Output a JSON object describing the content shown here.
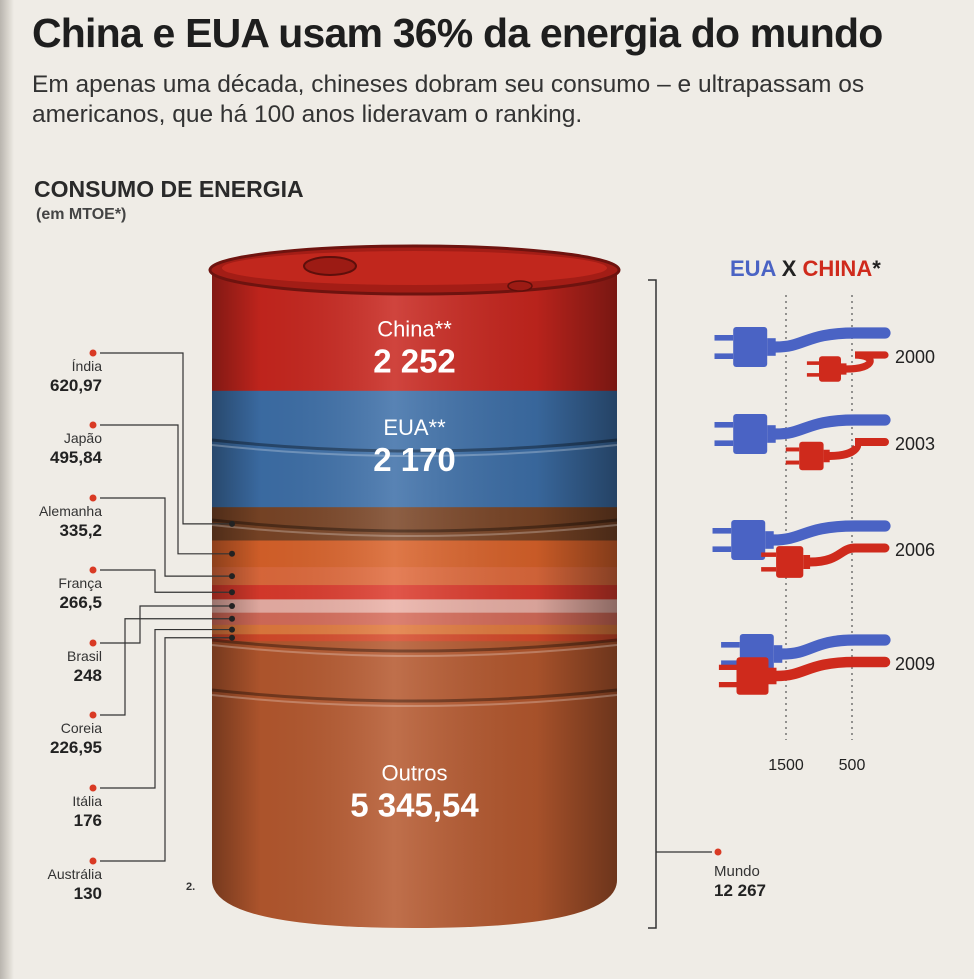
{
  "header": {
    "title": "China e EUA usam 36% da energia do mundo",
    "subtitle": "Em apenas uma década, chineses dobram seu consumo – e ultrapassam os americanos, que há 100 anos lideravam o ranking."
  },
  "section": {
    "title": "CONSUMO DE ENERGIA",
    "unit": "(em MTOE*)"
  },
  "figure_number": "2.",
  "colors": {
    "china": "#c8261e",
    "eua": "#3d6fa8",
    "others": "#b5582e",
    "eua_plug": "#4a63c4",
    "china_plug": "#cf2a1c"
  },
  "chart_data": [
    {
      "type": "bar",
      "title": "CONSUMO DE ENERGIA",
      "ylabel": "(em MTOE*)",
      "segments": [
        {
          "name": "China**",
          "label": "2 252",
          "value": 2252,
          "color": "#c8261e"
        },
        {
          "name": "EUA**",
          "label": "2 170",
          "value": 2170,
          "color": "#3d6fa8"
        },
        {
          "name": "Índia",
          "label": "620,97",
          "value": 620.97,
          "color": "#7a4526"
        },
        {
          "name": "Japão",
          "label": "495,84",
          "value": 495.84,
          "color": "#d9622a"
        },
        {
          "name": "Alemanha",
          "label": "335,2",
          "value": 335.2,
          "color": "#e06a3c"
        },
        {
          "name": "França",
          "label": "266,5",
          "value": 266.5,
          "color": "#dc3a2c"
        },
        {
          "name": "Brasil",
          "label": "248",
          "value": 248,
          "color": "#eab0a6"
        },
        {
          "name": "Coreia",
          "label": "226,95",
          "value": 226.95,
          "color": "#d66c5a"
        },
        {
          "name": "Itália",
          "label": "176",
          "value": 176,
          "color": "#e27a3e"
        },
        {
          "name": "Austrália",
          "label": "130",
          "value": 130,
          "color": "#d64a2a"
        },
        {
          "name": "Outros",
          "label": "5 345,54",
          "value": 5345.54,
          "color": "#b5582e"
        }
      ],
      "total": {
        "name": "Mundo",
        "label": "12 267",
        "value": 12267
      }
    },
    {
      "type": "bar",
      "title": "EUA X CHINA*",
      "series_names": [
        "EUA",
        "CHINA"
      ],
      "years": [
        "2000",
        "2003",
        "2006",
        "2009"
      ],
      "eua": [
        2300,
        2300,
        2330,
        2200
      ],
      "china": [
        1000,
        1300,
        1650,
        2250
      ],
      "ticks": [
        {
          "label": "1500",
          "value": 1500
        },
        {
          "label": "500",
          "value": 500
        }
      ],
      "xlim": [
        0,
        2500
      ]
    }
  ]
}
